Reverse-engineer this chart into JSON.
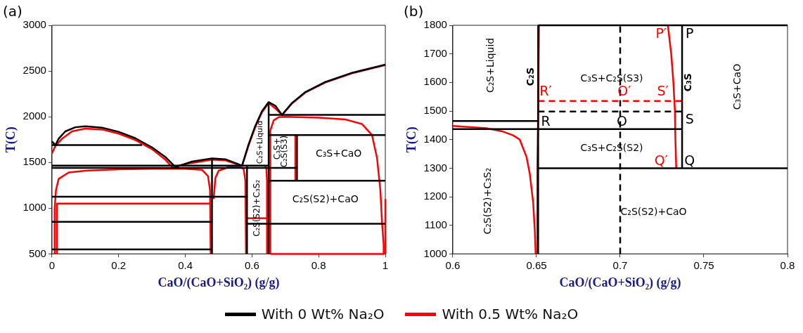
{
  "chart_data": [
    {
      "type": "line",
      "title": "(a)",
      "xlabel": "CaO/(CaO+SiO₂) (g/g)",
      "ylabel": "T(C)",
      "xlim": [
        0,
        1
      ],
      "xticks": [
        0,
        0.2,
        0.4,
        0.6,
        0.8,
        1
      ],
      "ylim": [
        500,
        3000
      ],
      "yticks": [
        500,
        1000,
        1500,
        2000,
        2500,
        3000
      ],
      "legend": "bottom",
      "series": [
        {
          "name": "With 0 Wt% Na₂O",
          "color": "#000000",
          "x": [
            0,
            0.01,
            0.02,
            0.04,
            0.07,
            0.1,
            0.15,
            0.2,
            0.25,
            0.3,
            0.34,
            0.37,
            0.42,
            0.48,
            0.52,
            0.56,
            0.57,
            0.59,
            0.61,
            0.63,
            0.65,
            0.67,
            0.69,
            0.72,
            0.76,
            0.82,
            0.9,
            1
          ],
          "values": [
            1730,
            1690,
            1760,
            1840,
            1885,
            1895,
            1880,
            1835,
            1765,
            1665,
            1560,
            1450,
            1510,
            1545,
            1535,
            1480,
            1465,
            1700,
            1900,
            2060,
            2160,
            2120,
            2020,
            2150,
            2270,
            2380,
            2480,
            2570
          ]
        },
        {
          "color": "#000000",
          "x": [
            0,
            0.27
          ],
          "values": [
            1690,
            1690
          ]
        },
        {
          "color": "#000000",
          "x": [
            0,
            0.65
          ],
          "values": [
            1465,
            1465
          ]
        },
        {
          "color": "#000000",
          "x": [
            0,
            0.735
          ],
          "values": [
            1440,
            1440
          ]
        },
        {
          "color": "#000000",
          "x": [
            0,
            0.585
          ],
          "values": [
            1125,
            1125
          ]
        },
        {
          "color": "#000000",
          "x": [
            0,
            0.48
          ],
          "values": [
            850,
            850
          ]
        },
        {
          "color": "#000000",
          "x": [
            0,
            0.48
          ],
          "values": [
            550,
            550
          ]
        },
        {
          "color": "#000000",
          "x": [
            0.585,
            1
          ],
          "values": [
            830,
            830
          ]
        },
        {
          "color": "#000000",
          "x": [
            0.65,
            1
          ],
          "values": [
            2020,
            2020
          ]
        },
        {
          "color": "#000000",
          "x": [
            0.65,
            1
          ],
          "values": [
            1800,
            1800
          ]
        },
        {
          "color": "#000000",
          "x": [
            0.65,
            1
          ],
          "values": [
            1300,
            1300
          ]
        },
        {
          "color": "#000000",
          "x": [
            0.48,
            0.48
          ],
          "values": [
            500,
            1545
          ]
        },
        {
          "color": "#000000",
          "x": [
            0.585,
            0.585
          ],
          "values": [
            500,
            1465
          ]
        },
        {
          "color": "#000000",
          "x": [
            0.65,
            0.65
          ],
          "values": [
            500,
            2160
          ]
        },
        {
          "color": "#000000",
          "x": [
            0.735,
            0.735
          ],
          "values": [
            1300,
            1800
          ]
        },
        {
          "name": "With 0.5 Wt% Na₂O",
          "color": "#ff0000",
          "x": [
            0,
            0.01,
            0.03,
            0.06,
            0.1,
            0.15,
            0.2,
            0.25,
            0.3,
            0.34,
            0.36,
            0.42,
            0.48,
            0.52,
            0.56,
            0.57,
            0.59,
            0.61,
            0.63,
            0.65,
            0.67,
            0.69,
            0.72,
            0.76,
            0.82,
            0.9,
            1
          ],
          "values": [
            1600,
            1680,
            1760,
            1840,
            1870,
            1860,
            1815,
            1745,
            1645,
            1530,
            1450,
            1495,
            1530,
            1522,
            1475,
            1460,
            1690,
            1890,
            2050,
            2150,
            2090,
            2020,
            2145,
            2265,
            2375,
            2475,
            2565
          ]
        },
        {
          "color": "#ff0000",
          "x": [
            0.008,
            0.008,
            0.012,
            0.02,
            0.05,
            0.1,
            0.2,
            0.3,
            0.4,
            0.45,
            0.468,
            0.474,
            0.476
          ],
          "values": [
            500,
            1000,
            1200,
            1320,
            1390,
            1410,
            1425,
            1430,
            1430,
            1420,
            1350,
            1200,
            500
          ]
        },
        {
          "color": "#ff0000",
          "x": [
            0.015,
            0.015,
            0.474
          ],
          "values": [
            500,
            1050,
            1050
          ]
        },
        {
          "color": "#ff0000",
          "x": [
            0.485,
            0.49,
            0.5,
            0.53,
            0.56,
            0.575,
            0.58,
            0.582
          ],
          "values": [
            1100,
            1330,
            1410,
            1450,
            1455,
            1430,
            1300,
            500
          ]
        },
        {
          "color": "#ff0000",
          "x": [
            0.585,
            0.645
          ],
          "values": [
            890,
            890
          ]
        },
        {
          "color": "#ff0000",
          "x": [
            0.645,
            0.645,
            0.643,
            0.64
          ],
          "values": [
            500,
            1300,
            1440,
            1460
          ]
        },
        {
          "color": "#ff0000",
          "x": [
            0.655,
            0.655,
            0.665,
            0.68,
            0.7,
            0.8,
            0.88,
            0.93,
            0.96,
            0.975,
            0.985,
            0.99,
            0.995,
            0.995
          ],
          "values": [
            500,
            1850,
            1960,
            1995,
            2000,
            1990,
            1970,
            1920,
            1800,
            1550,
            1200,
            850,
            600,
            500
          ]
        },
        {
          "color": "#ff0000",
          "x": [
            0.655,
            0.995
          ],
          "values": [
            500,
            500
          ]
        },
        {
          "color": "#ff0000",
          "x": [
            0.73,
            0.73
          ],
          "values": [
            1300,
            1800
          ]
        },
        {
          "color": "#ff0000",
          "x": [
            1,
            1
          ],
          "values": [
            500,
            1100
          ]
        }
      ],
      "annotations": [
        "C₂S+Liquid",
        "C₃S+",
        "C₂S(S3)",
        "C₃S+CaO",
        "C₂S(S2)+CaO",
        "C₂S(S2)+C₃S₂"
      ]
    },
    {
      "type": "line",
      "title": "(b)",
      "xlabel": "CaO/(CaO+SiO₂) (g/g)",
      "ylabel": "T(C)",
      "xlim": [
        0.6,
        0.8
      ],
      "xticks": [
        0.6,
        0.65,
        0.7,
        0.75,
        0.8
      ],
      "ylim": [
        1000,
        1800
      ],
      "yticks": [
        1000,
        1100,
        1200,
        1300,
        1400,
        1500,
        1600,
        1700,
        1800
      ],
      "series": [
        {
          "color": "#000000",
          "x": [
            0.651,
            0.651
          ],
          "values": [
            1000,
            1800
          ]
        },
        {
          "color": "#000000",
          "x": [
            0.651,
            0.8
          ],
          "values": [
            1800,
            1800
          ]
        },
        {
          "color": "#000000",
          "x": [
            0.737,
            0.737
          ],
          "values": [
            1300,
            1800
          ]
        },
        {
          "color": "#000000",
          "x": [
            0.6,
            0.651
          ],
          "values": [
            1465,
            1465
          ]
        },
        {
          "color": "#000000",
          "x": [
            0.6,
            0.737
          ],
          "values": [
            1437,
            1437
          ]
        },
        {
          "color": "#000000",
          "x": [
            0.651,
            0.8
          ],
          "values": [
            1300,
            1300
          ]
        },
        {
          "color": "#000000",
          "line_style": "dashed",
          "x": [
            0.7,
            0.7
          ],
          "values": [
            1000,
            1800
          ]
        },
        {
          "color": "#000000",
          "line_style": "dashed",
          "x": [
            0.651,
            0.737
          ],
          "values": [
            1498,
            1498
          ]
        },
        {
          "color": "#ff0000",
          "x": [
            0.6,
            0.62,
            0.63,
            0.636,
            0.64,
            0.644,
            0.646,
            0.648,
            0.649,
            0.6495
          ],
          "values": [
            1448,
            1440,
            1428,
            1415,
            1400,
            1340,
            1280,
            1180,
            1080,
            1000
          ]
        },
        {
          "color": "#ff0000",
          "x": [
            0.6505,
            0.6505,
            0.651,
            0.6515
          ],
          "values": [
            1000,
            1300,
            1500,
            1800
          ]
        },
        {
          "color": "#ff0000",
          "x": [
            0.7285,
            0.7305,
            0.7318,
            0.7327,
            0.733,
            0.7335
          ],
          "values": [
            1800,
            1700,
            1600,
            1500,
            1400,
            1300
          ]
        },
        {
          "color": "#ff0000",
          "line_style": "dashed",
          "x": [
            0.651,
            0.737
          ],
          "values": [
            1535,
            1535
          ]
        }
      ],
      "annotations": [
        "C₂S+Liquid",
        "C₂S",
        "C₃S+C₂S(S3)",
        "C₃S+C₂S(S2)",
        "C₂S(S2)+C₃S₂",
        "C₂S(S2)+CaO",
        "C₃S",
        "C₃S+CaO",
        "P",
        "S",
        "Q",
        "R",
        "O",
        "P′",
        "S′",
        "Q′",
        "R′",
        "O′"
      ]
    }
  ]
}
